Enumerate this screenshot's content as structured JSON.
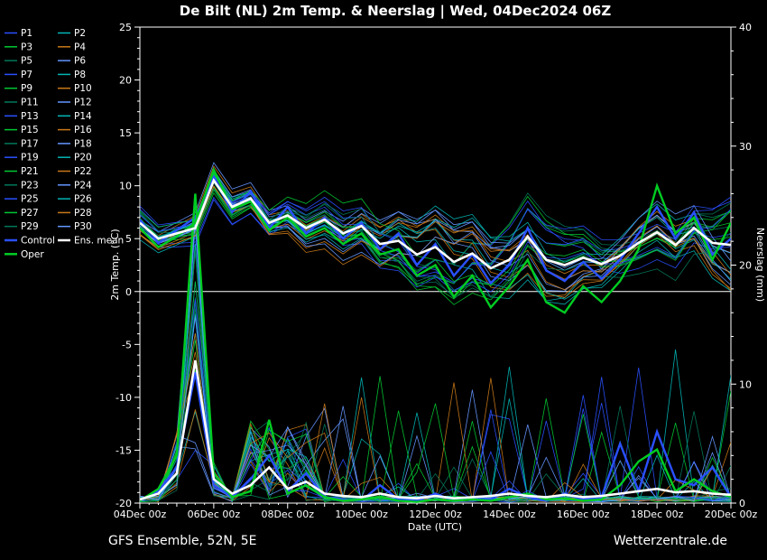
{
  "title": "De Bilt  (NL)  2m Temp. & Neerslag | Wed, 04Dec2024 06Z",
  "footer": {
    "left": "GFS Ensemble, 52N, 5E",
    "right": "Wetterzentrale.de"
  },
  "legend": {
    "members": [
      "P1",
      "P2",
      "P3",
      "P4",
      "P5",
      "P6",
      "P7",
      "P8",
      "P9",
      "P10",
      "P11",
      "P12",
      "P13",
      "P14",
      "P15",
      "P16",
      "P17",
      "P18",
      "P19",
      "P20",
      "P21",
      "P22",
      "P23",
      "P24",
      "P25",
      "P26",
      "P27",
      "P28",
      "P29",
      "P30"
    ],
    "control_label": "Control",
    "ens_mean_label": "Ens. mean",
    "oper_label": "Oper"
  },
  "chart_data": {
    "type": "line",
    "title": "De Bilt  (NL)  2m Temp. & Neerslag | Wed, 04Dec2024 06Z",
    "xlabel": "Date (UTC)",
    "ylabel_left": "2m Temp. (°C)",
    "ylabel_right": "Neerslag (mm)",
    "background": "#000000",
    "axis_color": "#ffffff",
    "grid": false,
    "x_hours_range": [
      0,
      384
    ],
    "time_step_hours": 12,
    "x_tick_labels": [
      "04Dec 00z",
      "06Dec 00z",
      "08Dec 00z",
      "10Dec 00z",
      "12Dec 00z",
      "14Dec 00z",
      "16Dec 00z",
      "18Dec 00z",
      "20Dec 00z"
    ],
    "temp_axis": {
      "min": -20,
      "max": 25,
      "ticks": [
        -20,
        -15,
        -10,
        -5,
        0,
        5,
        10,
        15,
        20,
        25
      ],
      "zero_line": true
    },
    "precip_axis": {
      "min": 0,
      "max": 40,
      "ticks": [
        0,
        10,
        20,
        30,
        40
      ]
    },
    "series": {
      "ens_mean": {
        "label": "Ens. mean",
        "color": "#ffffff",
        "temp": [
          6.5,
          5.0,
          5.5,
          6.0,
          10.5,
          8.0,
          8.8,
          6.5,
          7.2,
          6.0,
          6.8,
          5.5,
          6.2,
          4.5,
          4.8,
          3.5,
          4.2,
          2.8,
          3.6,
          2.2,
          3.0,
          5.2,
          3.0,
          2.5,
          3.2,
          2.6,
          3.4,
          4.6,
          5.6,
          4.4,
          6.0,
          4.6,
          4.4
        ],
        "precip": [
          0.3,
          0.8,
          2.5,
          12.0,
          2.0,
          0.8,
          1.5,
          3.0,
          1.2,
          1.8,
          0.8,
          0.6,
          0.5,
          0.8,
          0.5,
          0.4,
          0.6,
          0.4,
          0.5,
          0.6,
          0.8,
          0.6,
          0.5,
          0.7,
          0.5,
          0.6,
          0.8,
          1.0,
          1.2,
          0.9,
          1.0,
          0.8,
          0.7
        ]
      },
      "control": {
        "label": "Control",
        "color": "#2a50ff",
        "temp": [
          6.8,
          4.6,
          5.8,
          7.0,
          10.8,
          7.5,
          9.5,
          6.0,
          8.0,
          5.5,
          7.0,
          5.0,
          6.5,
          4.0,
          5.5,
          2.5,
          4.5,
          1.5,
          3.5,
          0.8,
          2.5,
          6.0,
          2.0,
          1.0,
          2.8,
          1.2,
          3.0,
          5.5,
          8.0,
          5.0,
          7.5,
          3.5,
          5.0
        ],
        "precip": [
          0.2,
          1.0,
          3.0,
          11.0,
          1.5,
          0.5,
          2.0,
          4.0,
          1.0,
          2.5,
          0.5,
          0.3,
          0.2,
          1.5,
          0.3,
          0.2,
          0.8,
          0.2,
          0.4,
          0.3,
          1.2,
          0.5,
          0.2,
          0.8,
          0.3,
          0.5,
          5.0,
          1.0,
          6.0,
          2.0,
          1.5,
          3.0,
          0.5
        ]
      },
      "oper": {
        "label": "Oper",
        "color": "#00cc22",
        "temp": [
          6.0,
          4.2,
          5.2,
          6.5,
          11.5,
          7.8,
          8.5,
          5.8,
          7.0,
          5.2,
          6.0,
          4.5,
          5.5,
          3.5,
          4.0,
          1.5,
          2.5,
          -0.5,
          1.5,
          -1.5,
          0.5,
          3.0,
          -1.0,
          -2.0,
          0.5,
          -1.0,
          1.0,
          4.0,
          10.0,
          5.5,
          7.0,
          3.0,
          6.5
        ],
        "precip": [
          0.2,
          1.2,
          4.0,
          26.0,
          2.5,
          0.5,
          1.0,
          7.0,
          0.8,
          1.5,
          0.5,
          0.2,
          0.3,
          0.5,
          0.2,
          0.1,
          0.3,
          0.2,
          0.3,
          0.2,
          0.5,
          0.8,
          0.3,
          0.4,
          0.2,
          0.3,
          1.5,
          3.5,
          4.5,
          1.0,
          2.0,
          1.0,
          0.5
        ]
      }
    },
    "members": {
      "count": 30,
      "note": "30 perturbed ensemble members (spaghetti); values approximated as ens_mean + envelope*noise",
      "palette": [
        "#2a50ff",
        "#00b4b4",
        "#00c832",
        "#c87818",
        "#00785a",
        "#6496ff"
      ],
      "spread_envelope": [
        1.0,
        1.0,
        1.2,
        1.4,
        1.5,
        1.6,
        1.7,
        1.8,
        1.9,
        2.0,
        2.1,
        2.2,
        2.3,
        2.4,
        2.6,
        2.8,
        3.0,
        3.1,
        3.2,
        3.3,
        3.4,
        3.5,
        3.6,
        3.7,
        3.8,
        4.0,
        4.2,
        4.4,
        4.6,
        4.8,
        5.0,
        5.2,
        5.3
      ],
      "precip_main_event_index": 3,
      "precip_main_event_range_mm": [
        4,
        27
      ]
    }
  }
}
